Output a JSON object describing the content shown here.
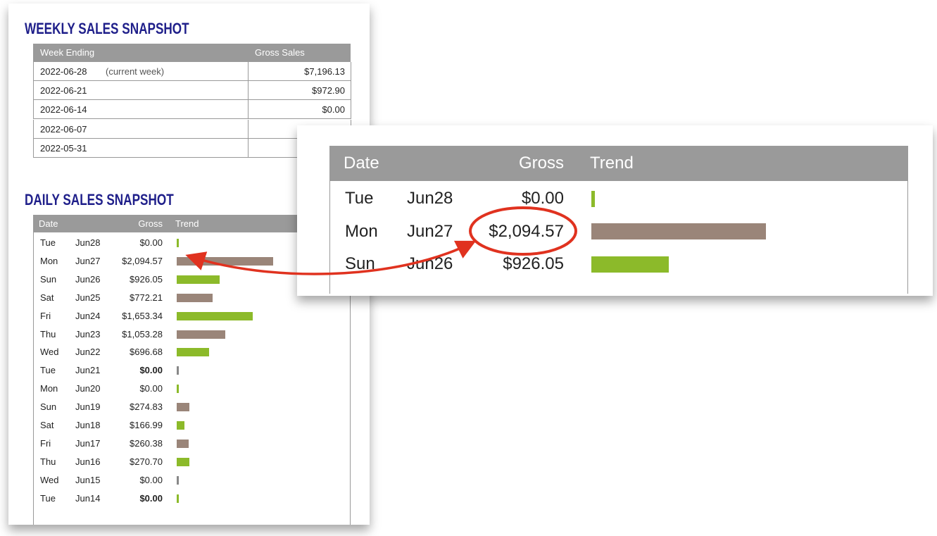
{
  "weekly": {
    "title": "WEEKLY SALES SNAPSHOT",
    "headers": [
      "Week Ending",
      "Gross Sales"
    ],
    "rows": [
      {
        "week": "2022-06-28",
        "note": "(current week)",
        "gross": "$7,196.13"
      },
      {
        "week": "2022-06-21",
        "gross": "$972.90"
      },
      {
        "week": "2022-06-14",
        "gross": "$0.00"
      },
      {
        "week": "2022-06-07"
      },
      {
        "week": "2022-05-31"
      }
    ]
  },
  "daily": {
    "title": "DAILY SALES SNAPSHOT",
    "headers": [
      "Date",
      "Gross",
      "Trend"
    ],
    "rows": [
      {
        "day": "Tue",
        "date": "Jun28",
        "gross": 0,
        "gross_label": "$0.00",
        "color": "#8cba2a"
      },
      {
        "day": "Mon",
        "date": "Jun27",
        "gross": 2094.57,
        "gross_label": "$2,094.57",
        "color": "#9a8579"
      },
      {
        "day": "Sun",
        "date": "Jun26",
        "gross": 926.05,
        "gross_label": "$926.05",
        "color": "#8cba2a"
      },
      {
        "day": "Sat",
        "date": "Jun25",
        "gross": 772.21,
        "gross_label": "$772.21",
        "color": "#9a8579"
      },
      {
        "day": "Fri",
        "date": "Jun24",
        "gross": 1653.34,
        "gross_label": "$1,653.34",
        "color": "#8cba2a"
      },
      {
        "day": "Thu",
        "date": "Jun23",
        "gross": 1053.28,
        "gross_label": "$1,053.28",
        "color": "#9a8579"
      },
      {
        "day": "Wed",
        "date": "Jun22",
        "gross": 696.68,
        "gross_label": "$696.68",
        "color": "#8cba2a"
      },
      {
        "day": "Tue",
        "date": "Jun21",
        "gross": 0,
        "gross_label": "$0.00",
        "color": "#888888",
        "bold": true
      },
      {
        "day": "Mon",
        "date": "Jun20",
        "gross": 0,
        "gross_label": "$0.00",
        "color": "#8cba2a"
      },
      {
        "day": "Sun",
        "date": "Jun19",
        "gross": 274.83,
        "gross_label": "$274.83",
        "color": "#9a8579"
      },
      {
        "day": "Sat",
        "date": "Jun18",
        "gross": 166.99,
        "gross_label": "$166.99",
        "color": "#8cba2a"
      },
      {
        "day": "Fri",
        "date": "Jun17",
        "gross": 260.38,
        "gross_label": "$260.38",
        "color": "#9a8579"
      },
      {
        "day": "Thu",
        "date": "Jun16",
        "gross": 270.7,
        "gross_label": "$270.70",
        "color": "#8cba2a"
      },
      {
        "day": "Wed",
        "date": "Jun15",
        "gross": 0,
        "gross_label": "$0.00",
        "color": "#888888"
      },
      {
        "day": "Tue",
        "date": "Jun14",
        "gross": 0,
        "gross_label": "$0.00",
        "color": "#8cba2a",
        "bold": true
      }
    ]
  }
}
